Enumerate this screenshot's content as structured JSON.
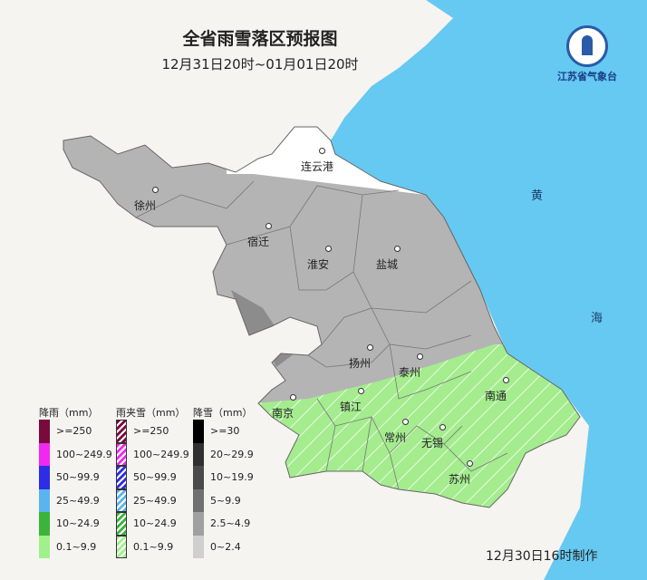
{
  "title": "全省雨雪落区预报图",
  "subtitle": "12月31日20时~01月01日20时",
  "logo": {
    "name": "江苏省气象台"
  },
  "sea_labels": [
    "黄",
    "海"
  ],
  "cities": [
    {
      "name": "连云港"
    },
    {
      "name": "徐州"
    },
    {
      "name": "宿迁"
    },
    {
      "name": "淮安"
    },
    {
      "name": "盐城"
    },
    {
      "name": "扬州"
    },
    {
      "name": "泰州"
    },
    {
      "name": "南京"
    },
    {
      "name": "镇江"
    },
    {
      "name": "南通"
    },
    {
      "name": "常州"
    },
    {
      "name": "无锡"
    },
    {
      "name": "苏州"
    }
  ],
  "legend": {
    "rain": {
      "title": "降雨（mm）",
      "items": [
        {
          "label": ">=250",
          "color": "#7a0a3c"
        },
        {
          "label": "100~249.9",
          "color": "#f028f0"
        },
        {
          "label": "50~99.9",
          "color": "#2d2de8"
        },
        {
          "label": "25~49.9",
          "color": "#5ab4f0"
        },
        {
          "label": "10~24.9",
          "color": "#3cb43c"
        },
        {
          "label": "0.1~9.9",
          "color": "#a0f08c"
        }
      ]
    },
    "sleet": {
      "title": "雨夹雪（mm）",
      "items": [
        {
          "label": ">=250",
          "color": "#7a0a3c"
        },
        {
          "label": "100~249.9",
          "color": "#f028f0"
        },
        {
          "label": "50~99.9",
          "color": "#2d2de8"
        },
        {
          "label": "25~49.9",
          "color": "#5ab4f0"
        },
        {
          "label": "10~24.9",
          "color": "#3cb43c"
        },
        {
          "label": "0.1~9.9",
          "color": "#a0f08c"
        }
      ]
    },
    "snow": {
      "title": "降雪（mm）",
      "items": [
        {
          "label": ">=30",
          "color": "#000000"
        },
        {
          "label": "20~29.9",
          "color": "#303030"
        },
        {
          "label": "10~19.9",
          "color": "#4a4a4a"
        },
        {
          "label": "5~9.9",
          "color": "#707070"
        },
        {
          "label": "2.5~4.9",
          "color": "#a0a0a0"
        },
        {
          "label": "0~2.4",
          "color": "#cfcfcf"
        }
      ]
    }
  },
  "colors": {
    "sea": "#66c9f2",
    "land": "#f6f4f0",
    "snow_light": "#b4b4b4",
    "snow_moderate": "#8c8c8c",
    "sleet_light": "#a4ec8e"
  },
  "footer": "12月30日16时制作"
}
